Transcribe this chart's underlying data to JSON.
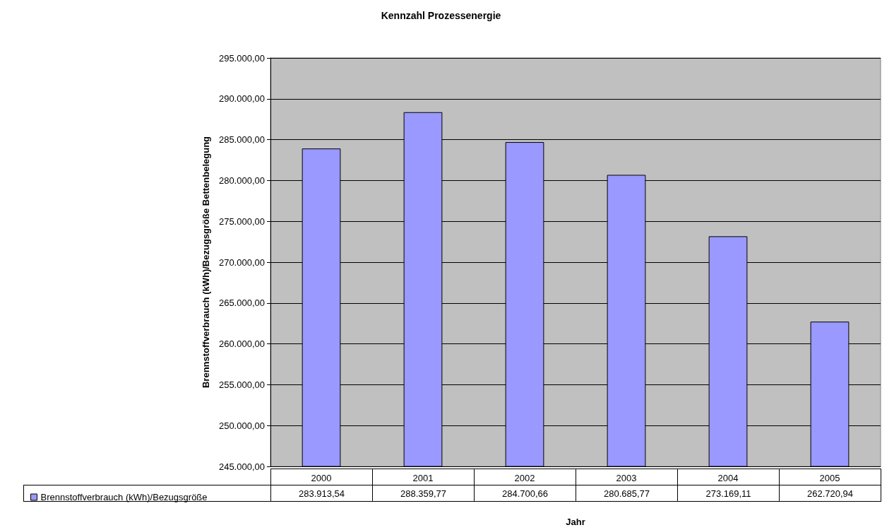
{
  "chart_data": {
    "type": "bar",
    "title": "Kennzahl Prozessenergie",
    "xlabel": "Jahr",
    "ylabel": "Brennstoffverbrauch (kWh)/Bezugsgröße Bettenbelegung",
    "categories": [
      "2000",
      "2001",
      "2002",
      "2003",
      "2004",
      "2005"
    ],
    "series": [
      {
        "name": "Brennstoffverbrauch (kWh)/Bezugsgröße",
        "color": "#9999ff",
        "values": [
          283913.54,
          288359.77,
          284700.66,
          280685.77,
          273169.11,
          262720.94
        ],
        "value_labels": [
          "283.913,54",
          "288.359,77",
          "284.700,66",
          "280.685,77",
          "273.169,11",
          "262.720,94"
        ]
      }
    ],
    "ylim": [
      245000,
      295000
    ],
    "yticks": [
      {
        "value": 245000,
        "label": "245.000,00"
      },
      {
        "value": 250000,
        "label": "250.000,00"
      },
      {
        "value": 255000,
        "label": "255.000,00"
      },
      {
        "value": 260000,
        "label": "260.000,00"
      },
      {
        "value": 265000,
        "label": "265.000,00"
      },
      {
        "value": 270000,
        "label": "270.000,00"
      },
      {
        "value": 275000,
        "label": "275.000,00"
      },
      {
        "value": 280000,
        "label": "280.000,00"
      },
      {
        "value": 285000,
        "label": "285.000,00"
      },
      {
        "value": 290000,
        "label": "290.000,00"
      },
      {
        "value": 295000,
        "label": "295.000,00"
      }
    ],
    "grid": "y",
    "legend": "bottom"
  }
}
